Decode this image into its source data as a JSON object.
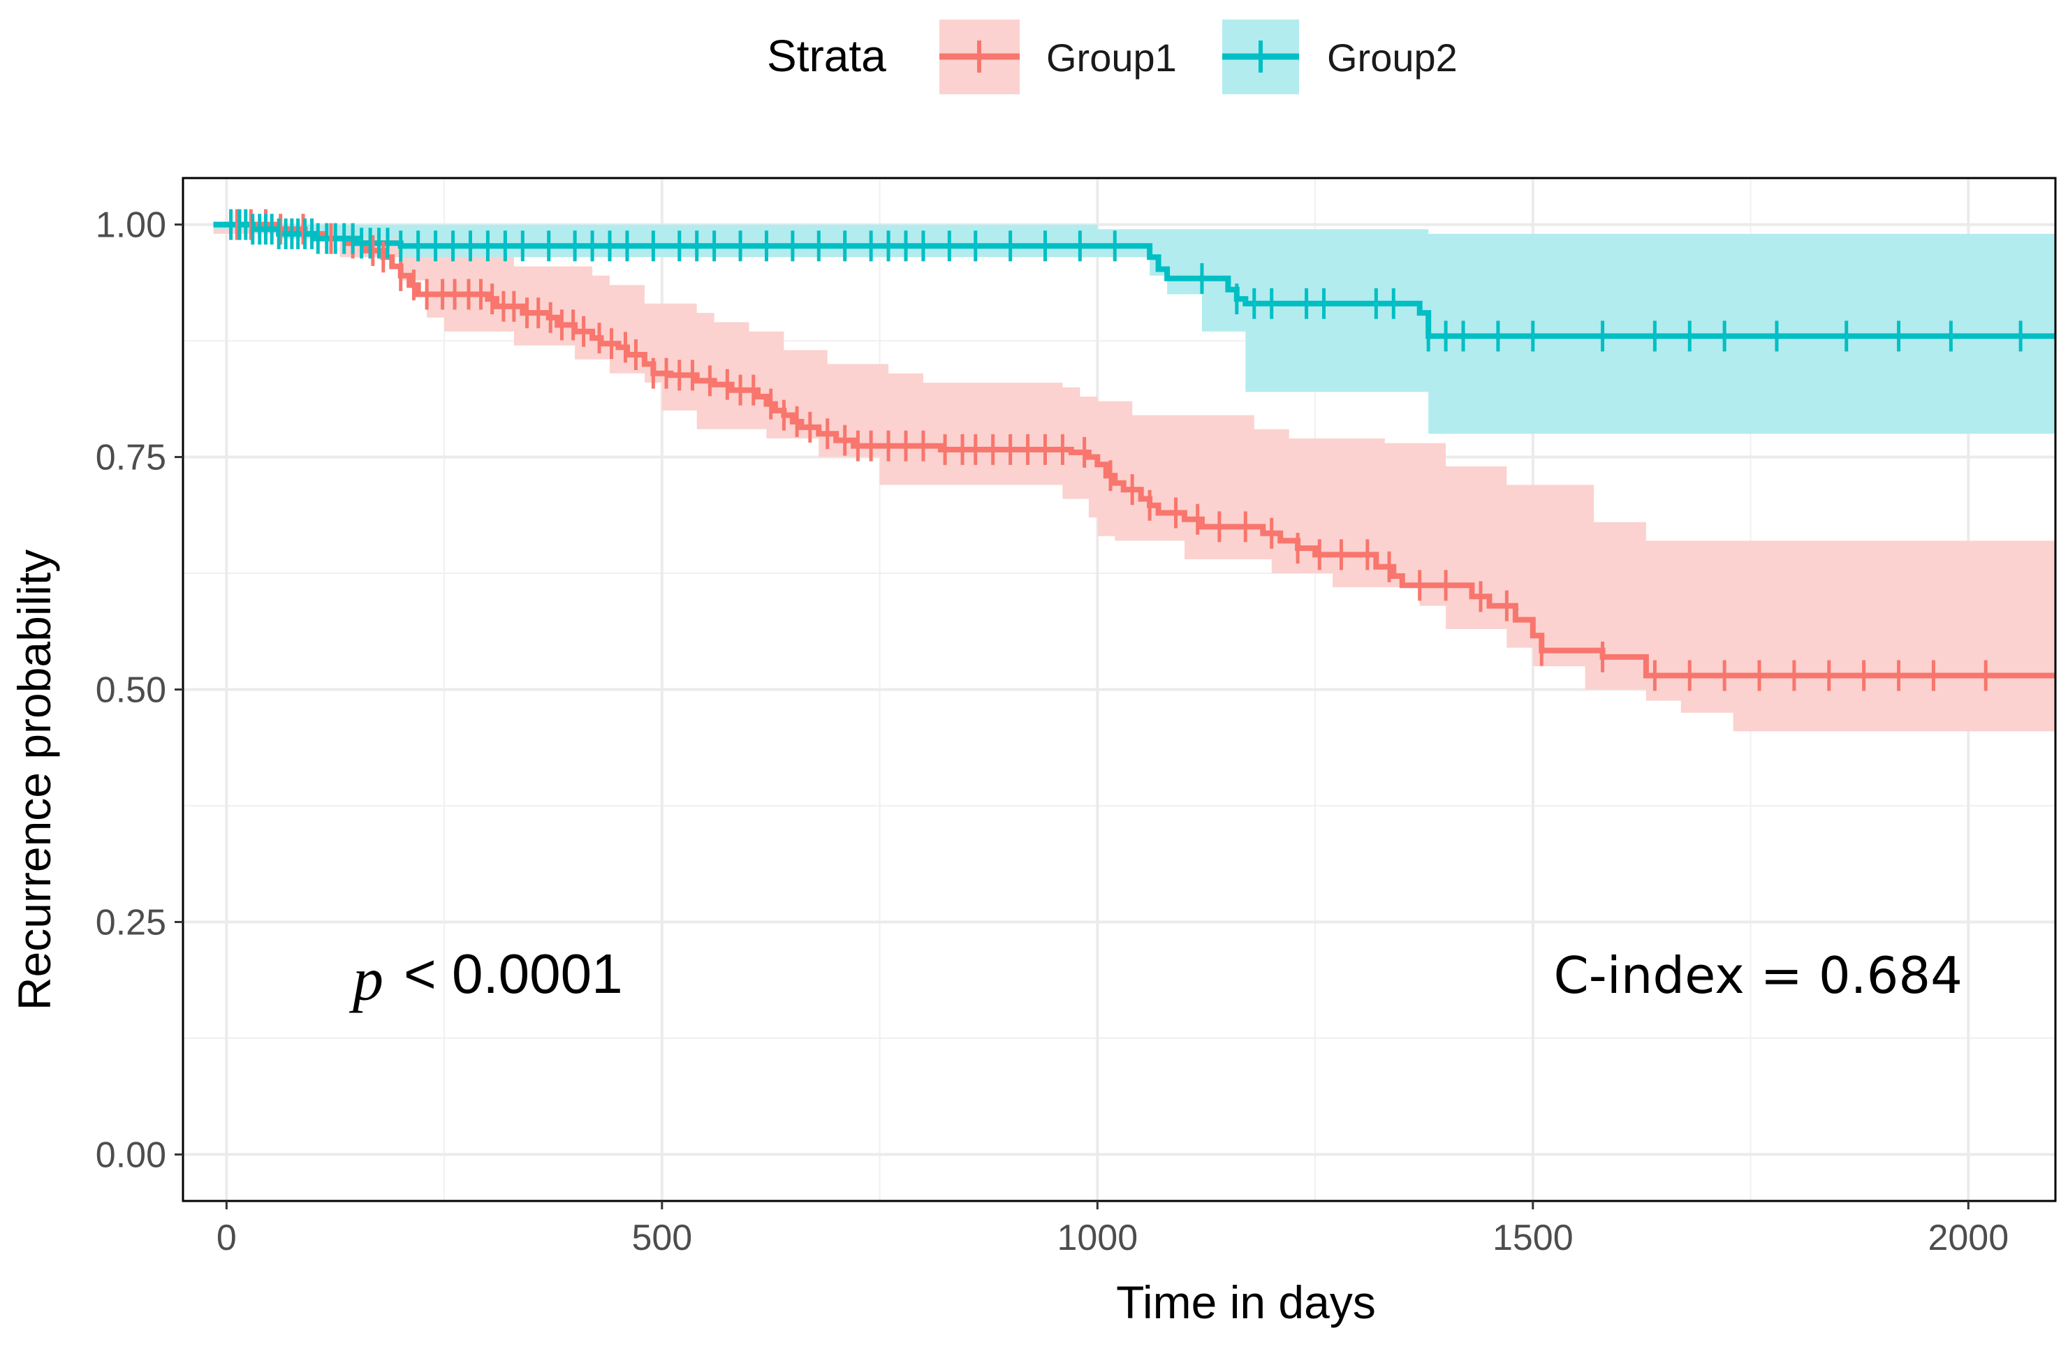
{
  "chart_data": {
    "type": "step",
    "title": "",
    "xlabel": "Time in days",
    "ylabel": "Recurrence probability",
    "xlim": [
      -50,
      2100
    ],
    "ylim": [
      -0.05,
      1.05
    ],
    "x_ticks": [
      0,
      500,
      1000,
      1500,
      2000
    ],
    "x_tick_labels": [
      "0",
      "500",
      "1000",
      "1500",
      "2000"
    ],
    "y_ticks": [
      0,
      0.25,
      0.5,
      0.75,
      1.0
    ],
    "y_tick_labels": [
      "0.00",
      "0.25",
      "0.50",
      "0.75",
      "1.00"
    ],
    "grid": true,
    "legend": {
      "title": "Strata",
      "position": "top",
      "entries": [
        "Group1",
        "Group2"
      ]
    },
    "annotations": {
      "p_symbol": "p",
      "p_text": "< 0.0001",
      "c_index": "C-index = 0.684"
    },
    "series": [
      {
        "name": "Group1",
        "color": "#F8766D",
        "fill": "#FBD2CF",
        "steps": [
          [
            -15,
            1.0
          ],
          [
            60,
            0.995
          ],
          [
            90,
            0.99
          ],
          [
            110,
            0.985
          ],
          [
            140,
            0.98
          ],
          [
            160,
            0.972
          ],
          [
            180,
            0.965
          ],
          [
            190,
            0.955
          ],
          [
            200,
            0.945
          ],
          [
            210,
            0.935
          ],
          [
            220,
            0.925
          ],
          [
            300,
            0.92
          ],
          [
            310,
            0.912
          ],
          [
            340,
            0.905
          ],
          [
            370,
            0.9
          ],
          [
            380,
            0.892
          ],
          [
            400,
            0.885
          ],
          [
            420,
            0.878
          ],
          [
            430,
            0.872
          ],
          [
            450,
            0.868
          ],
          [
            460,
            0.86
          ],
          [
            480,
            0.85
          ],
          [
            490,
            0.84
          ],
          [
            510,
            0.838
          ],
          [
            540,
            0.832
          ],
          [
            560,
            0.828
          ],
          [
            580,
            0.822
          ],
          [
            610,
            0.815
          ],
          [
            620,
            0.807
          ],
          [
            630,
            0.8
          ],
          [
            640,
            0.795
          ],
          [
            650,
            0.788
          ],
          [
            660,
            0.782
          ],
          [
            680,
            0.775
          ],
          [
            700,
            0.768
          ],
          [
            720,
            0.762
          ],
          [
            820,
            0.758
          ],
          [
            970,
            0.755
          ],
          [
            990,
            0.75
          ],
          [
            1000,
            0.742
          ],
          [
            1010,
            0.73
          ],
          [
            1020,
            0.722
          ],
          [
            1030,
            0.715
          ],
          [
            1050,
            0.705
          ],
          [
            1060,
            0.698
          ],
          [
            1070,
            0.69
          ],
          [
            1100,
            0.683
          ],
          [
            1120,
            0.675
          ],
          [
            1190,
            0.668
          ],
          [
            1210,
            0.66
          ],
          [
            1230,
            0.652
          ],
          [
            1250,
            0.645
          ],
          [
            1320,
            0.632
          ],
          [
            1340,
            0.622
          ],
          [
            1350,
            0.612
          ],
          [
            1430,
            0.6
          ],
          [
            1450,
            0.59
          ],
          [
            1480,
            0.575
          ],
          [
            1500,
            0.558
          ],
          [
            1510,
            0.542
          ],
          [
            1580,
            0.535
          ],
          [
            1630,
            0.515
          ],
          [
            2100,
            0.515
          ]
        ],
        "upper": [
          [
            -15,
            1.0
          ],
          [
            90,
            0.995
          ],
          [
            200,
            0.975
          ],
          [
            240,
            0.968
          ],
          [
            330,
            0.955
          ],
          [
            420,
            0.945
          ],
          [
            440,
            0.935
          ],
          [
            480,
            0.915
          ],
          [
            540,
            0.905
          ],
          [
            560,
            0.895
          ],
          [
            600,
            0.885
          ],
          [
            640,
            0.865
          ],
          [
            690,
            0.85
          ],
          [
            760,
            0.84
          ],
          [
            800,
            0.83
          ],
          [
            960,
            0.825
          ],
          [
            980,
            0.815
          ],
          [
            1000,
            0.81
          ],
          [
            1040,
            0.795
          ],
          [
            1180,
            0.78
          ],
          [
            1220,
            0.77
          ],
          [
            1330,
            0.765
          ],
          [
            1400,
            0.74
          ],
          [
            1470,
            0.72
          ],
          [
            1570,
            0.68
          ],
          [
            1630,
            0.66
          ],
          [
            2100,
            0.66
          ]
        ],
        "lower": [
          [
            -15,
            0.99
          ],
          [
            130,
            0.965
          ],
          [
            200,
            0.94
          ],
          [
            230,
            0.9
          ],
          [
            250,
            0.885
          ],
          [
            330,
            0.87
          ],
          [
            400,
            0.855
          ],
          [
            440,
            0.84
          ],
          [
            480,
            0.83
          ],
          [
            500,
            0.8
          ],
          [
            540,
            0.78
          ],
          [
            620,
            0.77
          ],
          [
            680,
            0.75
          ],
          [
            750,
            0.72
          ],
          [
            960,
            0.705
          ],
          [
            990,
            0.685
          ],
          [
            1000,
            0.665
          ],
          [
            1020,
            0.66
          ],
          [
            1100,
            0.64
          ],
          [
            1200,
            0.625
          ],
          [
            1270,
            0.61
          ],
          [
            1370,
            0.59
          ],
          [
            1400,
            0.565
          ],
          [
            1470,
            0.545
          ],
          [
            1500,
            0.525
          ],
          [
            1560,
            0.5
          ],
          [
            1630,
            0.488
          ],
          [
            1670,
            0.475
          ],
          [
            1730,
            0.455
          ],
          [
            2100,
            0.455
          ]
        ],
        "censor_x": [
          12,
          28,
          45,
          62,
          88,
          120,
          145,
          168,
          180,
          200,
          215,
          230,
          248,
          262,
          278,
          292,
          305,
          318,
          330,
          345,
          358,
          372,
          385,
          398,
          410,
          428,
          442,
          458,
          470,
          490,
          505,
          520,
          535,
          555,
          575,
          590,
          605,
          625,
          640,
          655,
          670,
          690,
          710,
          725,
          740,
          760,
          780,
          800,
          825,
          845,
          860,
          880,
          900,
          920,
          940,
          960,
          985,
          1015,
          1040,
          1060,
          1090,
          1115,
          1140,
          1170,
          1200,
          1230,
          1255,
          1280,
          1310,
          1335,
          1370,
          1400,
          1440,
          1470,
          1510,
          1580,
          1640,
          1680,
          1720,
          1760,
          1800,
          1840,
          1880,
          1920,
          1960,
          2020
        ]
      },
      {
        "name": "Group2",
        "color": "#00BFC4",
        "fill": "#B2ECEE",
        "steps": [
          [
            -15,
            1.0
          ],
          [
            30,
            0.995
          ],
          [
            60,
            0.99
          ],
          [
            100,
            0.985
          ],
          [
            150,
            0.98
          ],
          [
            200,
            0.977
          ],
          [
            1060,
            0.965
          ],
          [
            1070,
            0.952
          ],
          [
            1080,
            0.942
          ],
          [
            1150,
            0.93
          ],
          [
            1160,
            0.92
          ],
          [
            1170,
            0.915
          ],
          [
            1370,
            0.905
          ],
          [
            1380,
            0.88
          ],
          [
            2100,
            0.88
          ]
        ],
        "upper": [
          [
            -15,
            1.0
          ],
          [
            1000,
            0.995
          ],
          [
            1380,
            0.99
          ],
          [
            2100,
            0.99
          ]
        ],
        "lower": [
          [
            -15,
            0.995
          ],
          [
            60,
            0.985
          ],
          [
            200,
            0.965
          ],
          [
            1060,
            0.945
          ],
          [
            1080,
            0.925
          ],
          [
            1120,
            0.885
          ],
          [
            1170,
            0.82
          ],
          [
            1380,
            0.775
          ],
          [
            2100,
            0.775
          ]
        ],
        "censor_x": [
          5,
          15,
          22,
          30,
          38,
          45,
          52,
          60,
          68,
          75,
          82,
          90,
          98,
          105,
          115,
          125,
          135,
          145,
          155,
          165,
          175,
          185,
          200,
          220,
          240,
          260,
          280,
          300,
          320,
          340,
          370,
          400,
          420,
          440,
          460,
          490,
          520,
          540,
          560,
          590,
          620,
          650,
          680,
          710,
          740,
          760,
          780,
          800,
          830,
          860,
          900,
          940,
          980,
          1020,
          1120,
          1160,
          1180,
          1200,
          1240,
          1260,
          1320,
          1340,
          1380,
          1400,
          1420,
          1460,
          1500,
          1580,
          1640,
          1680,
          1720,
          1780,
          1860,
          1920,
          1980,
          2060
        ]
      }
    ]
  }
}
